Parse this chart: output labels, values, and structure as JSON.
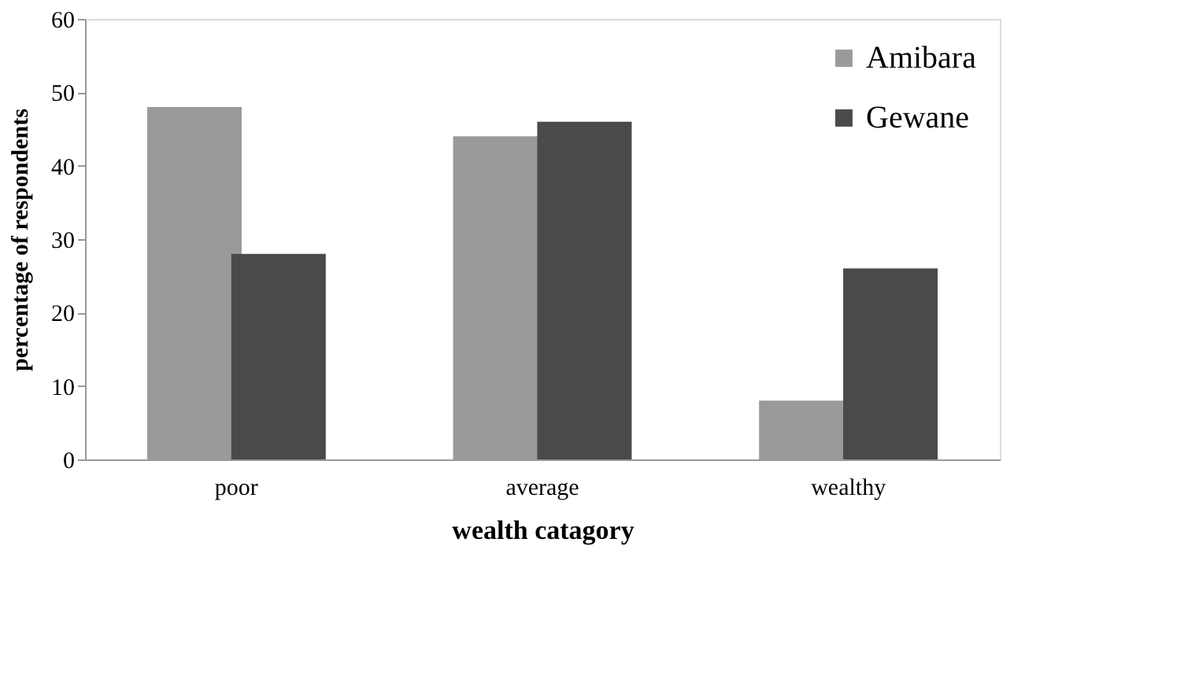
{
  "chart_data": {
    "type": "bar",
    "xlabel": "wealth catagory",
    "ylabel": "percentage of respondents",
    "categories": [
      "poor",
      "average",
      "wealthy"
    ],
    "series": [
      {
        "name": "Amibara",
        "color": "#9a9a9a",
        "values": [
          48,
          44,
          8
        ]
      },
      {
        "name": "Gewane",
        "color": "#4a4a4a",
        "values": [
          28,
          46,
          26
        ]
      }
    ],
    "ylim": [
      0,
      60
    ],
    "yticks": [
      0,
      10,
      20,
      30,
      40,
      50,
      60
    ],
    "grid": false,
    "legend": "top right"
  }
}
